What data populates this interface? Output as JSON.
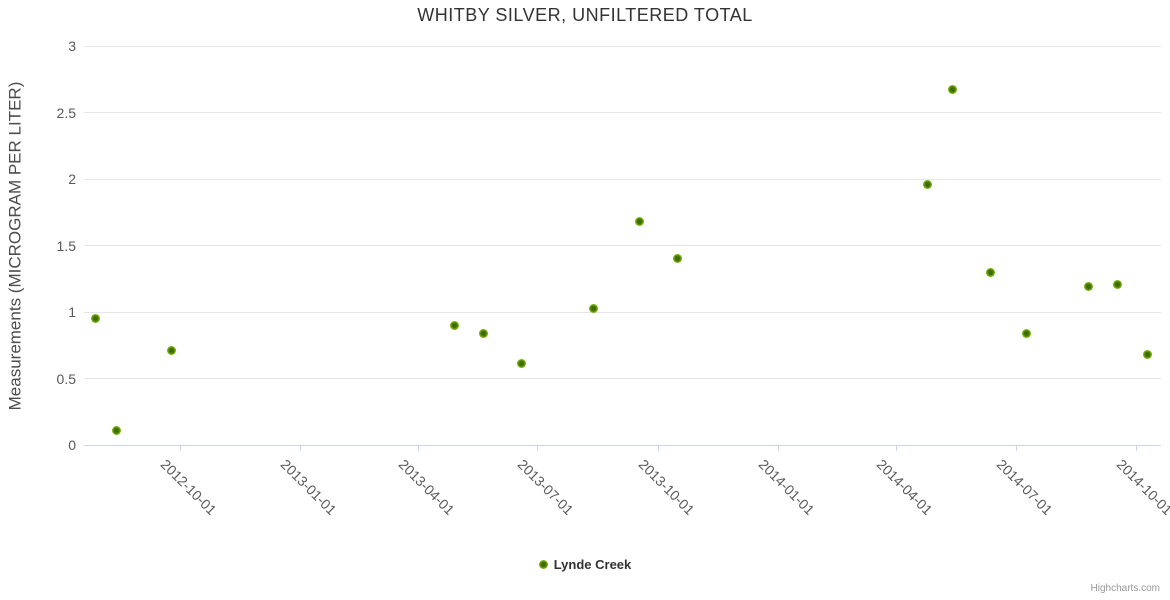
{
  "chart_data": {
    "type": "scatter",
    "title": "WHITBY SILVER, UNFILTERED TOTAL",
    "xlabel": "",
    "ylabel": "Measurements (MICROGRAM PER LITER)",
    "ylim": [
      0,
      3
    ],
    "y_ticks": [
      0,
      0.5,
      1,
      1.5,
      2,
      2.5,
      3
    ],
    "xlim": [
      "2012-07-20",
      "2014-10-20"
    ],
    "x_ticks": [
      "2012-10-01",
      "2013-01-01",
      "2013-04-01",
      "2013-07-01",
      "2013-10-01",
      "2014-01-01",
      "2014-04-01",
      "2014-07-01",
      "2014-10-01"
    ],
    "grid": true,
    "legend_position": "bottom-center",
    "series": [
      {
        "name": "Lynde Creek",
        "color": "#7ab40e",
        "points": [
          {
            "date": "2012-07-29",
            "value": 0.95
          },
          {
            "date": "2012-08-14",
            "value": 0.11
          },
          {
            "date": "2012-09-25",
            "value": 0.71
          },
          {
            "date": "2013-04-29",
            "value": 0.9
          },
          {
            "date": "2013-05-21",
            "value": 0.84
          },
          {
            "date": "2013-06-19",
            "value": 0.61
          },
          {
            "date": "2013-08-13",
            "value": 1.03
          },
          {
            "date": "2013-09-17",
            "value": 1.68
          },
          {
            "date": "2013-10-16",
            "value": 1.4
          },
          {
            "date": "2014-04-25",
            "value": 1.96
          },
          {
            "date": "2014-05-14",
            "value": 2.67
          },
          {
            "date": "2014-06-12",
            "value": 1.3
          },
          {
            "date": "2014-07-09",
            "value": 0.84
          },
          {
            "date": "2014-08-26",
            "value": 1.19
          },
          {
            "date": "2014-09-17",
            "value": 1.21
          },
          {
            "date": "2014-10-10",
            "value": 0.68
          }
        ]
      }
    ]
  },
  "legend": {
    "items": [
      {
        "label": "Lynde Creek"
      }
    ]
  },
  "credits": "Highcharts.com",
  "colors": {
    "marker_outer": "#7ab40e",
    "marker_inner": "#3f6c04",
    "grid": "#e6e6e6",
    "axis": "#ccd6eb",
    "title": "#333333",
    "axis_label": "#5a5a5a",
    "y_title": "#4d4d4d",
    "legend_text": "#333333",
    "credits_text": "#999999",
    "background": "#ffffff"
  }
}
